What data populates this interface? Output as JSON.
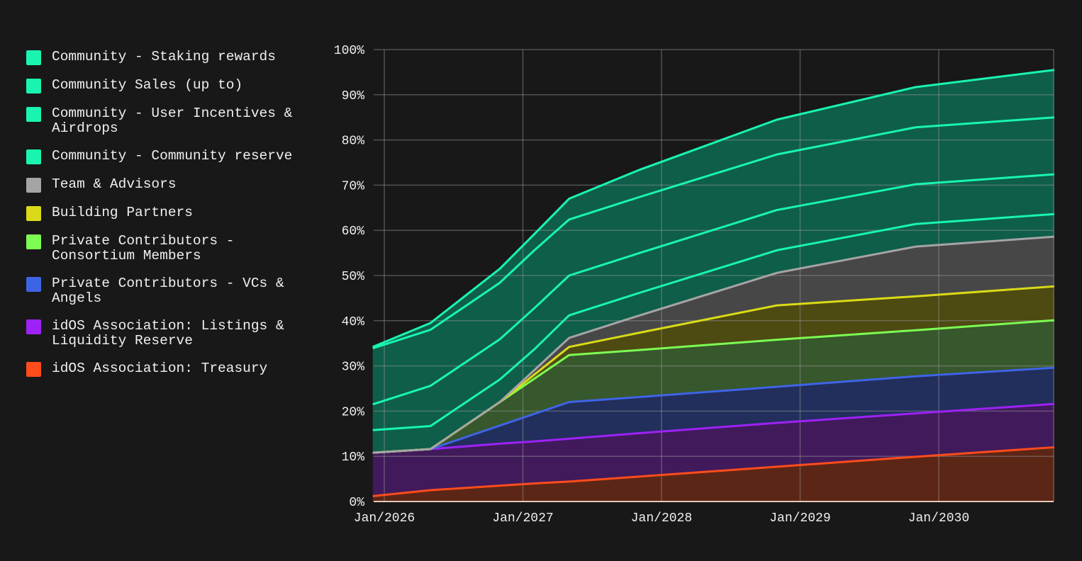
{
  "chart_data": {
    "type": "area",
    "stacked": true,
    "title": "",
    "xlabel": "",
    "ylabel": "",
    "ylim": [
      0,
      100
    ],
    "y_ticks": [
      "0%",
      "10%",
      "20%",
      "30%",
      "40%",
      "50%",
      "60%",
      "70%",
      "80%",
      "90%",
      "100%"
    ],
    "x_ticks": [
      "Jan/2026",
      "Jan/2027",
      "Jan/2028",
      "Jan/2029",
      "Jan/2030"
    ],
    "grid": true,
    "legend_position": "left",
    "x": [
      "2025-12",
      "2026-05",
      "2026-11",
      "2027-02",
      "2027-05",
      "2027-11",
      "2028-11",
      "2029-11",
      "2030-11"
    ],
    "series": [
      {
        "name": "Community - Staking rewards",
        "color": "#19f5b0",
        "fill": "#0e5e4a",
        "values": [
          0.3,
          1.5,
          3.1,
          3.6,
          4.6,
          6.0,
          7.7,
          8.9,
          10.5
        ]
      },
      {
        "name": "Community Sales (up to)",
        "color": "#19f5b0",
        "fill": "#0e5e4a",
        "values": [
          12.4,
          12.4,
          12.5,
          12.8,
          12.4,
          12.4,
          12.3,
          12.6,
          12.6
        ]
      },
      {
        "name": "Community - User Incentives & Airdrops",
        "color": "#19f5b0",
        "fill": "#0e5e4a",
        "values": [
          5.7,
          8.9,
          8.9,
          9.1,
          8.8,
          8.8,
          8.9,
          8.8,
          8.8
        ]
      },
      {
        "name": "Community - Community reserve",
        "color": "#19f5b0",
        "fill": "#0e5e4a",
        "values": [
          5.0,
          5.1,
          5.0,
          4.6,
          5.0,
          5.0,
          5.0,
          5.0,
          5.0
        ]
      },
      {
        "name": "Team & Advisors",
        "color": "#a5a5a5",
        "fill": "#474747",
        "values": [
          0,
          0,
          0,
          1.0,
          2.0,
          3.8,
          7.2,
          11.0,
          11.0
        ]
      },
      {
        "name": "Building Partners",
        "color": "#dada18",
        "fill": "#4d4a12",
        "values": [
          0,
          0,
          0,
          0.9,
          1.8,
          3.8,
          7.6,
          7.5,
          7.5
        ]
      },
      {
        "name": "Private Contributors - Consortium Members",
        "color": "#7dfc52",
        "fill": "#37572c",
        "values": [
          0,
          0,
          5.2,
          7.8,
          10.4,
          10.4,
          10.4,
          10.2,
          10.5
        ]
      },
      {
        "name": "Private Contributors - VCs & Angels",
        "color": "#3e64e6",
        "fill": "#222e5c",
        "values": [
          0,
          0,
          4.0,
          6.1,
          8.1,
          8.0,
          8.0,
          8.2,
          8.0
        ]
      },
      {
        "name": "idOS Association: Listings & Liquidity Reserve",
        "color": "#9c22f6",
        "fill": "#411a5c",
        "values": [
          9.6,
          9.1,
          9.3,
          9.3,
          9.5,
          9.6,
          9.7,
          9.6,
          9.6
        ]
      },
      {
        "name": "idOS Association: Treasury",
        "color": "#ff4c1c",
        "fill": "#5c2616",
        "values": [
          1.2,
          2.5,
          3.5,
          4.0,
          4.4,
          5.5,
          7.7,
          9.9,
          12.0
        ]
      }
    ]
  }
}
